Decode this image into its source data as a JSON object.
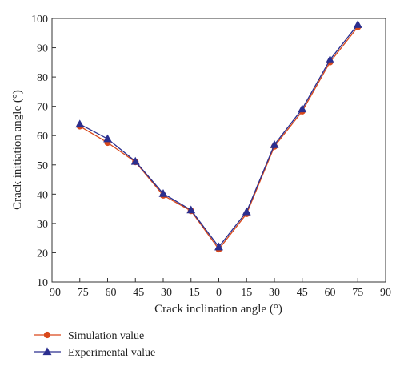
{
  "chart_data": {
    "type": "line",
    "title": "",
    "xlabel": "Crack inclination angle (°)",
    "ylabel": "Crack initiation angle (°)",
    "xlim": [
      -90,
      90
    ],
    "ylim": [
      10,
      100
    ],
    "x_ticks": [
      -90,
      -75,
      -60,
      -45,
      -30,
      -15,
      0,
      15,
      30,
      45,
      60,
      75,
      90
    ],
    "x_tick_labels": [
      "−90",
      "−75",
      "−60",
      "−45",
      "−30",
      "−15",
      "0",
      "15",
      "30",
      "45",
      "60",
      "75",
      "90"
    ],
    "y_ticks": [
      10,
      20,
      30,
      40,
      50,
      60,
      70,
      80,
      90,
      100
    ],
    "y_tick_labels": [
      "10",
      "20",
      "30",
      "40",
      "50",
      "60",
      "70",
      "80",
      "90",
      "100"
    ],
    "grid": false,
    "legend_position": "bottom-left, below plot",
    "x": [
      -75,
      -60,
      -45,
      -30,
      -15,
      0,
      15,
      30,
      45,
      60,
      75
    ],
    "series": [
      {
        "name": "Simulation value",
        "marker": "circle",
        "color": "#d9481a",
        "values": [
          63.2,
          57.6,
          51.0,
          39.6,
          34.3,
          21.2,
          33.3,
          56.3,
          68.3,
          85.1,
          97.1
        ]
      },
      {
        "name": "Experimental value",
        "marker": "triangle",
        "color": "#2b2f8f",
        "values": [
          63.9,
          58.9,
          51.2,
          40.2,
          34.6,
          22.0,
          34.0,
          56.9,
          69.1,
          85.9,
          97.9
        ]
      }
    ]
  }
}
